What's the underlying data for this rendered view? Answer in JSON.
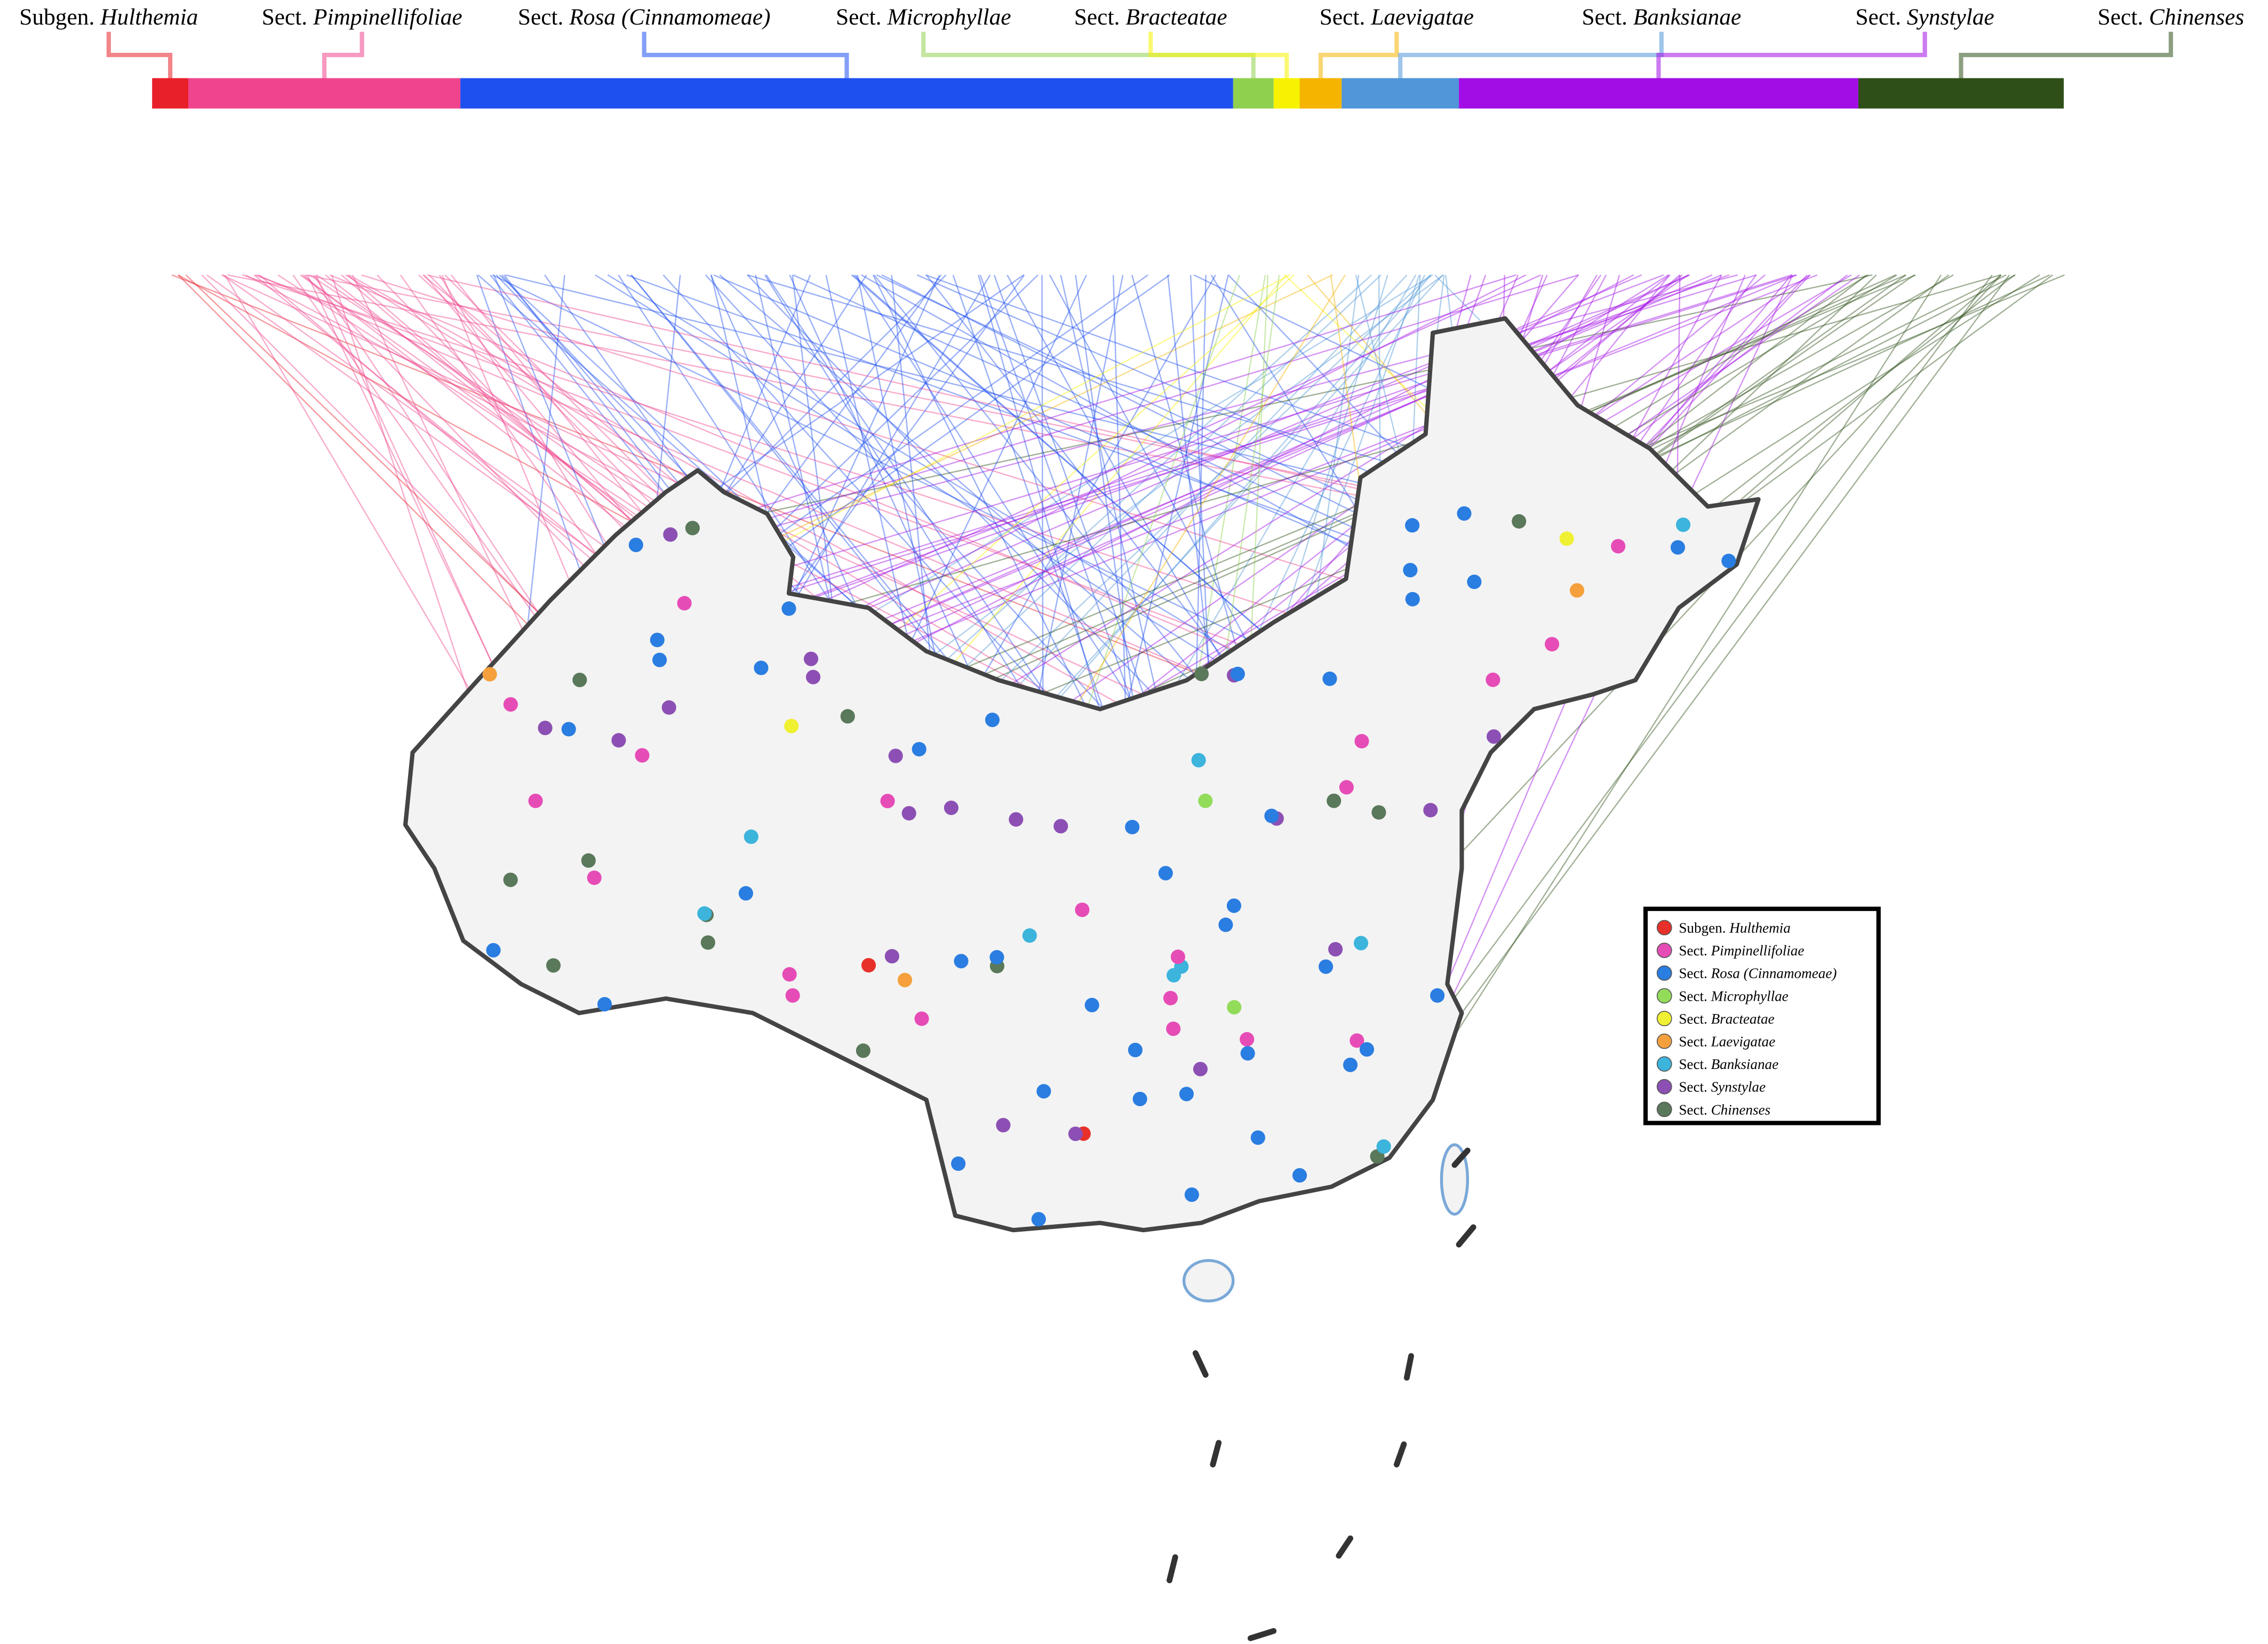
{
  "header": {
    "sections": [
      {
        "rank": "Subgen.",
        "name": "Hulthemia",
        "color": "#e8202a"
      },
      {
        "rank": "Sect.",
        "name": "Pimpinellifoliae",
        "color": "#f0458e"
      },
      {
        "rank": "Sect.",
        "name": "Rosa (Cinnamomeae)",
        "color": "#1e50f0"
      },
      {
        "rank": "Sect.",
        "name": "Microphyllae",
        "color": "#8fd14f"
      },
      {
        "rank": "Sect.",
        "name": "Bracteatae",
        "color": "#f7f200"
      },
      {
        "rank": "Sect.",
        "name": "Laevigatae",
        "color": "#f5b400"
      },
      {
        "rank": "Sect.",
        "name": "Banksianae",
        "color": "#5096d8"
      },
      {
        "rank": "Sect.",
        "name": "Synstylae",
        "color": "#a20de6"
      },
      {
        "rank": "Sect.",
        "name": "Chinenses",
        "color": "#2e5018"
      }
    ]
  },
  "legend": {
    "entries": [
      {
        "rank": "Subgen.",
        "name": "Hulthemia",
        "color": "#e8302a"
      },
      {
        "rank": "Sect.",
        "name": "Pimpinellifoliae",
        "color": "#e64cb6"
      },
      {
        "rank": "Sect.",
        "name": "Rosa (Cinnamomeae)",
        "color": "#2a7de1"
      },
      {
        "rank": "Sect.",
        "name": "Microphyllae",
        "color": "#93dc5a"
      },
      {
        "rank": "Sect.",
        "name": "Bracteatae",
        "color": "#f0f032"
      },
      {
        "rank": "Sect.",
        "name": "Laevigatae",
        "color": "#f5a03c"
      },
      {
        "rank": "Sect.",
        "name": "Banksianae",
        "color": "#3cb4dc"
      },
      {
        "rank": "Sect.",
        "name": "Synstylae",
        "color": "#8c50b4"
      },
      {
        "rank": "Sect.",
        "name": "Chinenses",
        "color": "#5a785a"
      }
    ]
  }
}
